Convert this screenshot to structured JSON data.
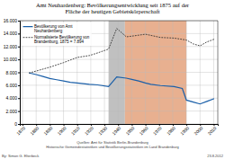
{
  "chart_data": {
    "type": "line",
    "title": "Amt Neuhardenberg: Bevölkerungsentwicklung seit 1875 auf der\nFläche der heutigen Gebietskörperschaft",
    "series": [
      {
        "name": "Bevölkerung von Amt\nNeuhardenberg",
        "color": "#1a5fa8",
        "line_style": "solid",
        "x": [
          1875,
          1880,
          1885,
          1890,
          1895,
          1900,
          1905,
          1910,
          1919,
          1925,
          1933,
          1939,
          1946,
          1950,
          1955,
          1960,
          1964,
          1971,
          1981,
          1987,
          1990,
          1995,
          2000,
          2005,
          2010
        ],
        "values": [
          7900,
          7650,
          7350,
          7050,
          6850,
          6650,
          6450,
          6350,
          6150,
          6050,
          5800,
          7300,
          7100,
          6900,
          6650,
          6350,
          6150,
          5950,
          5800,
          5500,
          3700,
          3400,
          3100,
          3500,
          3900
        ]
      },
      {
        "name": "Normalisierte Bevölkerung von\nBrandenburg, 1875 = 7.894",
        "color": "#333333",
        "line_style": "dotted",
        "x": [
          1875,
          1880,
          1890,
          1900,
          1910,
          1919,
          1925,
          1933,
          1939,
          1946,
          1950,
          1960,
          1971,
          1981,
          1990,
          1995,
          2000,
          2005,
          2010
        ],
        "values": [
          7900,
          8200,
          8800,
          9500,
          10300,
          10600,
          11000,
          11600,
          14800,
          13500,
          13600,
          13900,
          13400,
          13300,
          13000,
          12400,
          12100,
          12700,
          13100
        ]
      }
    ],
    "spans": [
      {
        "start": 1933,
        "end": 1945,
        "color": "#c0c0c0"
      },
      {
        "start": 1945,
        "end": 1990,
        "color": "#e8b090"
      }
    ],
    "xlim": [
      1868,
      2013
    ],
    "xticks": [
      1870,
      1880,
      1890,
      1900,
      1910,
      1920,
      1930,
      1940,
      1950,
      1960,
      1970,
      1980,
      1990,
      2000,
      2010
    ],
    "ylim": [
      0,
      16000
    ],
    "yticks": [
      0,
      {
        "value": 2000,
        "label": "2.000"
      },
      {
        "value": 4000,
        "label": "4.000"
      },
      {
        "value": 6000,
        "label": "6.000"
      },
      {
        "value": 8000,
        "label": "8.000"
      },
      {
        "value": 10000,
        "label": "10.000"
      },
      {
        "value": 12000,
        "label": "12.000"
      },
      {
        "value": 14000,
        "label": "14.000"
      },
      {
        "value": 16000,
        "label": "16.000"
      }
    ],
    "grid": true,
    "legend": "upper left",
    "annotations": [
      "Quellen: Amt für Statistik Berlin-Brandenburg\nHistorische Gemeindestatistiken und Bevölkerungsstatistiken im Land Brandenburg",
      "By: Simon G. Elterbeck",
      "23.8.2012"
    ]
  }
}
